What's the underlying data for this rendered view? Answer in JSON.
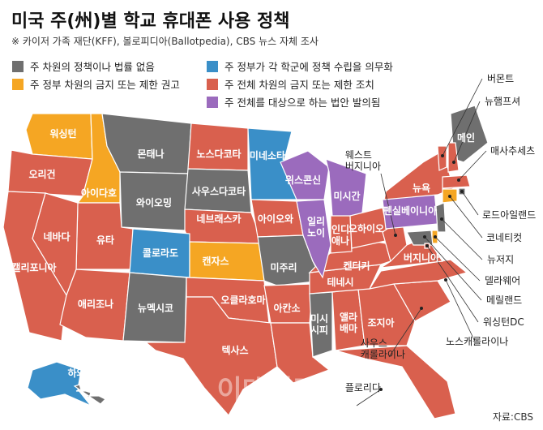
{
  "title": "미국 주(州)별 학교 휴대폰 사용 정책",
  "subtitle": "※ 카이저 가족 재단(KFF), 볼로피디아(Ballotpedia), CBS 뉴스 자체 조사",
  "legend": [
    {
      "label": "주 차원의 정책이나 법률 없음",
      "color": "#6f6f6f"
    },
    {
      "label": "주 정부 차원의 금지 또는 제한 권고",
      "color": "#f5a623"
    },
    {
      "label": "주 정부가 각 학군에 정책 수립을 의무화",
      "color": "#3a8fc8"
    },
    {
      "label": "주 전체 차원의 금지 또는 제한 조치",
      "color": "#d9604e"
    },
    {
      "label": "주 전체를 대상으로 하는 법안 발의됨",
      "color": "#9b6bbd"
    }
  ],
  "states": [
    {
      "name": "워싱턴",
      "category": 1
    },
    {
      "name": "오리건",
      "category": 3
    },
    {
      "name": "아이다호",
      "category": 1
    },
    {
      "name": "몬태나",
      "category": 0
    },
    {
      "name": "와이오밍",
      "category": 0
    },
    {
      "name": "노스다코타",
      "category": 3
    },
    {
      "name": "사우스다코타",
      "category": 0
    },
    {
      "name": "미네소타",
      "category": 2
    },
    {
      "name": "네브래스카",
      "category": 3
    },
    {
      "name": "아이오와",
      "category": 3
    },
    {
      "name": "유타",
      "category": 3
    },
    {
      "name": "네바다",
      "category": 3
    },
    {
      "name": "캘리포니아",
      "category": 3
    },
    {
      "name": "콜로라도",
      "category": 2
    },
    {
      "name": "캔자스",
      "category": 1
    },
    {
      "name": "애리조나",
      "category": 3
    },
    {
      "name": "뉴멕시코",
      "category": 0
    },
    {
      "name": "오클라호마",
      "category": 3
    },
    {
      "name": "텍사스",
      "category": 3
    },
    {
      "name": "미주리",
      "category": 0
    },
    {
      "name": "아칸소",
      "category": 3
    },
    {
      "name": "루이지애나",
      "category": 3
    },
    {
      "name": "미시\n시피",
      "category": 0
    },
    {
      "name": "앨라\n배마",
      "category": 3
    },
    {
      "name": "조지아",
      "category": 3
    },
    {
      "name": "플로리다",
      "category": 3
    },
    {
      "name": "사우스\n캐롤라이나",
      "category": 3
    },
    {
      "name": "노스캐롤라이나",
      "category": 3
    },
    {
      "name": "테네시",
      "category": 3
    },
    {
      "name": "켄터키",
      "category": 3
    },
    {
      "name": "위스콘신",
      "category": 4
    },
    {
      "name": "일리\n노이",
      "category": 4
    },
    {
      "name": "미시간",
      "category": 4
    },
    {
      "name": "인디\n애나",
      "category": 3
    },
    {
      "name": "오하이오",
      "category": 3
    },
    {
      "name": "웨스트\n버지니아",
      "category": 3
    },
    {
      "name": "버지니아",
      "category": 3
    },
    {
      "name": "펜실베이니아",
      "category": 4
    },
    {
      "name": "뉴욕",
      "category": 3
    },
    {
      "name": "메인",
      "category": 0
    },
    {
      "name": "버몬트",
      "category": 3
    },
    {
      "name": "뉴햄프셔",
      "category": 3
    },
    {
      "name": "매사추세츠",
      "category": 3
    },
    {
      "name": "로드아일랜드",
      "category": 0
    },
    {
      "name": "코네티컷",
      "category": 1
    },
    {
      "name": "뉴저지",
      "category": 0
    },
    {
      "name": "델라웨어",
      "category": 1
    },
    {
      "name": "메릴랜드",
      "category": 0
    },
    {
      "name": "워싱턴DC",
      "category": 3
    },
    {
      "name": "알래스카",
      "category": 2
    },
    {
      "name": "하와이",
      "category": 0
    }
  ],
  "source": "자료:CBS",
  "watermark": "이데일리"
}
